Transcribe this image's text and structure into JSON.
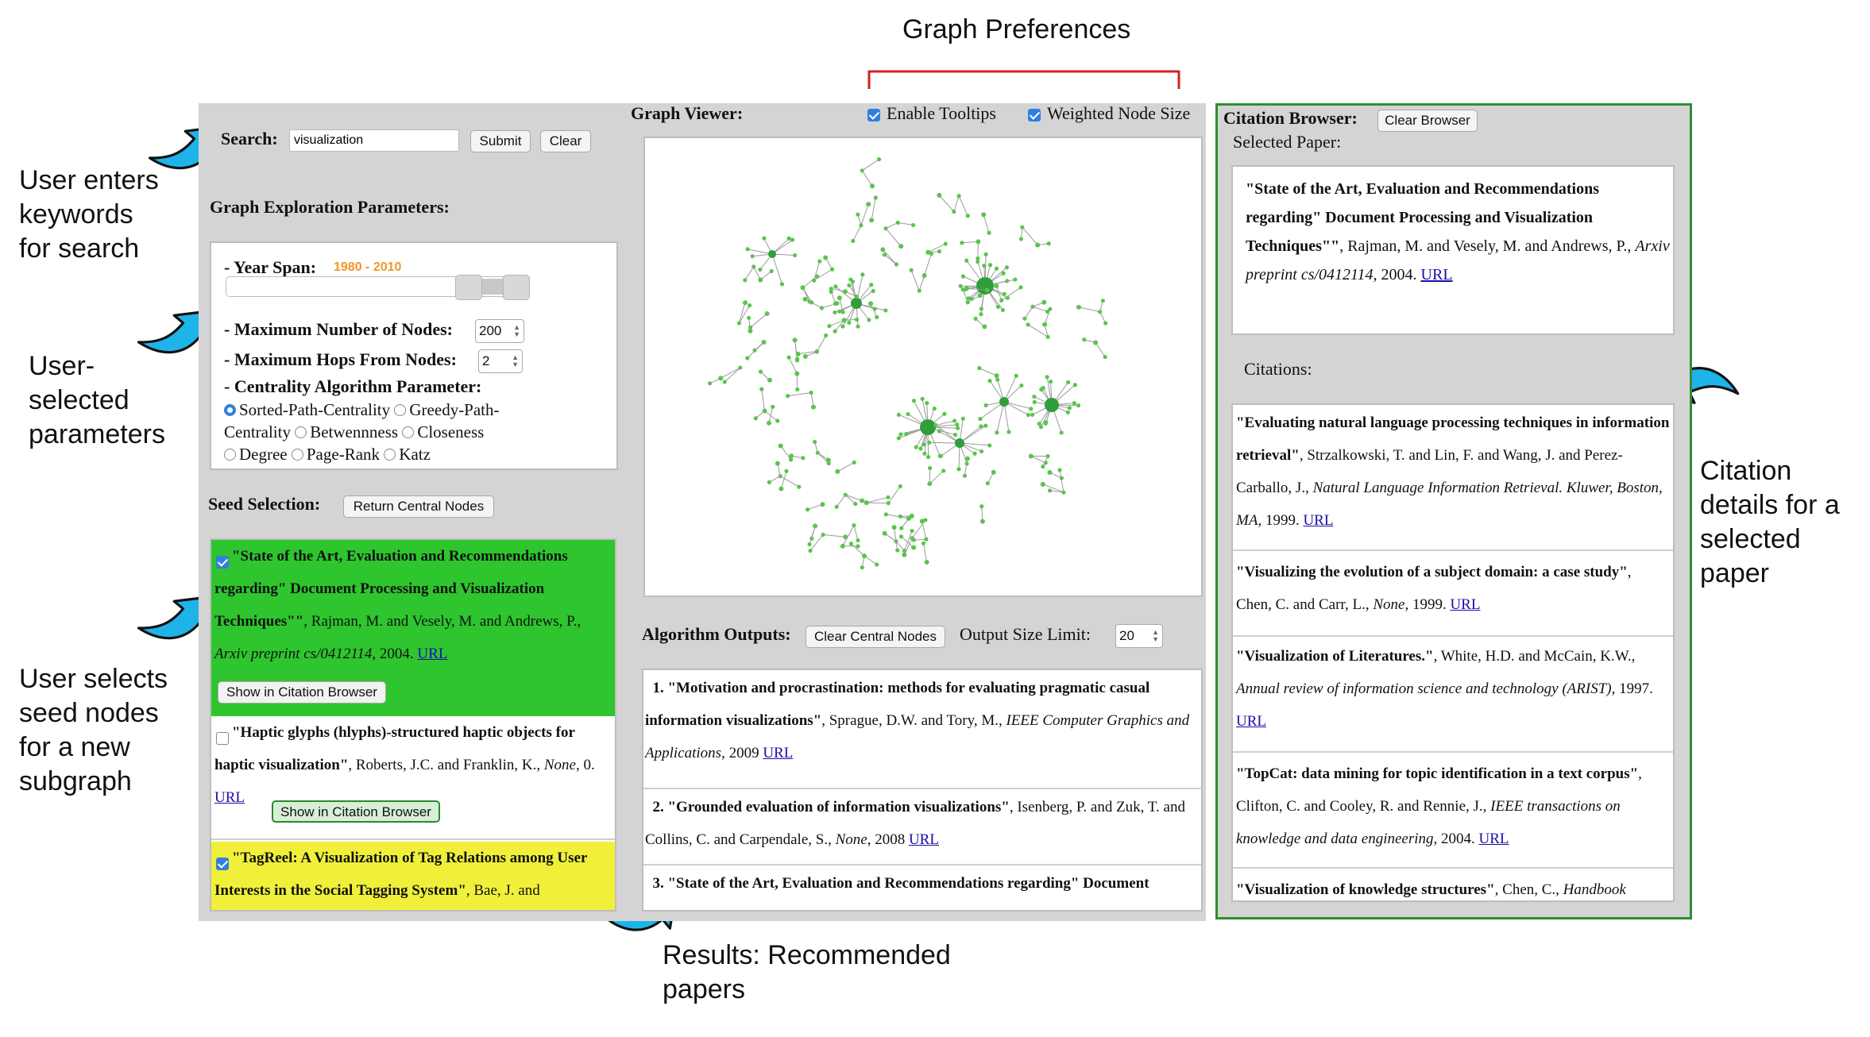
{
  "annotations": {
    "graph_preferences": "Graph Preferences",
    "search": [
      "User enters",
      "keywords",
      "for search"
    ],
    "params": [
      "User-",
      "selected",
      "parameters"
    ],
    "seed": [
      "User selects",
      "seed nodes",
      "for a new",
      "subgraph"
    ],
    "results": [
      "Results: Recommended",
      "papers"
    ],
    "citation": [
      "Citation",
      "details for a",
      "selected",
      "paper"
    ]
  },
  "search": {
    "label": "Search:",
    "value": "visualization",
    "submit": "Submit",
    "clear": "Clear"
  },
  "params": {
    "heading": "Graph Exploration Parameters:",
    "year_span_label": "- Year Span:",
    "year_span_value": "1980 - 2010",
    "max_nodes_label": "- Maximum Number of Nodes:",
    "max_nodes_value": "200",
    "max_hops_label": "- Maximum Hops From Nodes:",
    "max_hops_value": "2",
    "centrality_label": "- Centrality Algorithm Parameter:",
    "options": [
      "Sorted-Path-Centrality",
      "Greedy-Path-",
      "Centrality",
      "Betwennness",
      "Closeness",
      "Degree",
      "Page-Rank",
      "Katz"
    ],
    "selected": "Sorted-Path-Centrality"
  },
  "seed": {
    "label": "Seed Selection:",
    "button": "Return Central Nodes",
    "show_button": "Show in Citation Browser",
    "url": "URL",
    "item1": {
      "title": "\"State of the Art, Evaluation and Recommendations regarding\" Document Processing and Visualization Techniques\"\"",
      "authors": ", Rajman, M. and Vesely, M. and Andrews, P.,",
      "venue": "Arxiv preprint cs/0412114",
      "year": ", 2004.",
      "color": "#2ec52e",
      "checked": true
    },
    "item2": {
      "title": "\"Haptic glyphs (hlyphs)-structured haptic objects for haptic visualization\"",
      "authors": ", Roberts, J.C. and Franklin, K.,",
      "venue": "None",
      "year": ", 0.",
      "checked": false
    },
    "item3": {
      "title": "\"TagReel: A Visualization of Tag Relations among User Interests in the Social Tagging System\"",
      "authors": ", Bae, J. and",
      "color": "#f0f03a",
      "checked": true
    }
  },
  "graph": {
    "label": "Graph Viewer:",
    "tooltips": "Enable Tooltips",
    "weighted": "Weighted Node Size",
    "node_color": "#58c64a",
    "hub_color": "#2f9e3c"
  },
  "outputs": {
    "label": "Algorithm Outputs:",
    "clear_button": "Clear Central Nodes",
    "limit_label": "Output Size Limit:",
    "limit_value": "20",
    "url": "URL",
    "items": [
      {
        "num": "1.",
        "title": "\"Motivation and procrastination: methods for evaluating pragmatic casual information visualizations\"",
        "authors": ", Sprague, D.W. and Tory, M.,",
        "venue": "IEEE Computer Graphics and Applications",
        "year": ", 2009"
      },
      {
        "num": "2.",
        "title": "\"Grounded evaluation of information visualizations\"",
        "authors": ", Isenberg, P. and Zuk, T. and Collins, C. and Carpendale, S.,",
        "venue": "None",
        "year": ", 2008"
      },
      {
        "num": "3.",
        "title": "\"State of the Art, Evaluation and Recommendations regarding\" Document"
      }
    ]
  },
  "citation": {
    "label": "Citation Browser:",
    "clear_button": "Clear Browser",
    "selected_label": "Selected Paper:",
    "selected": {
      "title": "\"State of the Art, Evaluation and Recommendations regarding\" Document Processing and Visualization Techniques\"\"",
      "authors": ", Rajman, M. and Vesely, M. and Andrews, P.,",
      "venue": "Arxiv preprint cs/0412114",
      "year": ", 2004."
    },
    "citations_label": "Citations:",
    "url": "URL",
    "items": [
      {
        "title": "\"Evaluating natural language processing techniques in information retrieval\"",
        "authors": ", Strzalkowski, T. and Lin, F. and Wang, J. and Perez-Carballo, J.,",
        "venue": "Natural Language Information Retrieval. Kluwer, Boston, MA",
        "year": ", 1999."
      },
      {
        "title": "\"Visualizing the evolution of a subject domain: a case study\"",
        "authors": ", Chen, C. and Carr, L.,",
        "venue": "None",
        "year": ", 1999."
      },
      {
        "title": "\"Visualization of Literatures.\"",
        "authors": ", White, H.D. and McCain, K.W.,",
        "venue": "Annual review of information science and technology (ARIST)",
        "year": ", 1997."
      },
      {
        "title": "\"TopCat: data mining for topic identification in a text corpus\"",
        "authors": ", Clifton, C. and Cooley, R. and Rennie, J.,",
        "venue": "IEEE transactions on knowledge and data engineering",
        "year": ", 2004."
      },
      {
        "title": "\"Visualization of knowledge structures\"",
        "authors": ", Chen, C.,",
        "venue": "Handbook"
      }
    ]
  }
}
